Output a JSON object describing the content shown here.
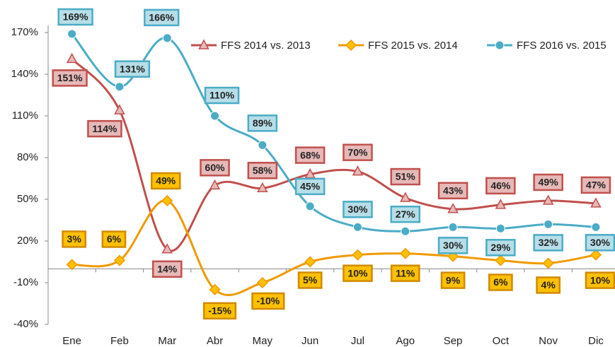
{
  "chart_data": {
    "type": "line",
    "categories": [
      "Ene",
      "Feb",
      "Mar",
      "Abr",
      "May",
      "Jun",
      "Jul",
      "Ago",
      "Sep",
      "Oct",
      "Nov",
      "Dic"
    ],
    "series": [
      {
        "name": "FFS 2014 vs. 2013",
        "color": "#c0504d",
        "marker": "triangle",
        "values": [
          151,
          114,
          14,
          60,
          58,
          68,
          70,
          51,
          43,
          46,
          49,
          47
        ],
        "value_labels": [
          "151%",
          "114%",
          "14%",
          "60%",
          "58%",
          "68%",
          "70%",
          "51%",
          "43%",
          "46%",
          "49%",
          "47%"
        ]
      },
      {
        "name": "FFS 2015 vs. 2014",
        "color": "#f09a00",
        "marker": "diamond",
        "values": [
          3,
          6,
          49,
          -15,
          -10,
          5,
          10,
          11,
          9,
          6,
          4,
          10
        ],
        "value_labels": [
          "3%",
          "6%",
          "49%",
          "-15%",
          "-10%",
          "5%",
          "10%",
          "11%",
          "9%",
          "6%",
          "4%",
          "10%"
        ]
      },
      {
        "name": "FFS 2016 vs. 2015",
        "color": "#4bacc6",
        "marker": "circle",
        "values": [
          169,
          131,
          166,
          110,
          89,
          45,
          30,
          27,
          30,
          29,
          32,
          30
        ],
        "value_labels": [
          "169%",
          "131%",
          "166%",
          "110%",
          "89%",
          "45%",
          "30%",
          "27%",
          "30%",
          "29%",
          "32%",
          "30%"
        ]
      }
    ],
    "ylim": [
      -40,
      170
    ],
    "yticks": [
      {
        "value": -40,
        "label": "-40%"
      },
      {
        "value": -10,
        "label": "-10%"
      },
      {
        "value": 20,
        "label": "20%"
      },
      {
        "value": 50,
        "label": "50%"
      },
      {
        "value": 80,
        "label": "80%"
      },
      {
        "value": 110,
        "label": "110%"
      },
      {
        "value": 140,
        "label": "140%"
      },
      {
        "value": 170,
        "label": "170%"
      }
    ],
    "grid": false,
    "legend": "top"
  }
}
